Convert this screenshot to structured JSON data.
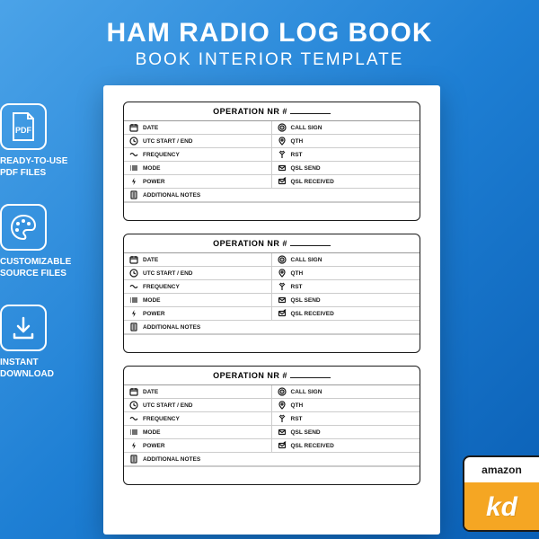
{
  "header": {
    "title": "HAM RADIO LOG BOOK",
    "subtitle": "BOOK INTERIOR TEMPLATE"
  },
  "features": [
    {
      "icon": "pdf",
      "line1": "READY-TO-USE",
      "line2": "PDF FILES"
    },
    {
      "icon": "palette",
      "line1": "CUSTOMIZABLE",
      "line2": "SOURCE FILES"
    },
    {
      "icon": "download",
      "line1": "INSTANT",
      "line2": "DOWNLOAD"
    }
  ],
  "log": {
    "header_prefix": "OPERATION NR #",
    "fields_left": [
      {
        "icon": "calendar",
        "label": "DATE"
      },
      {
        "icon": "clock",
        "label": "UTC START / END"
      },
      {
        "icon": "signal",
        "label": "FREQUENCY"
      },
      {
        "icon": "list",
        "label": "MODE"
      },
      {
        "icon": "power",
        "label": "POWER"
      }
    ],
    "fields_right": [
      {
        "icon": "target",
        "label": "CALL SIGN"
      },
      {
        "icon": "pin",
        "label": "QTH"
      },
      {
        "icon": "antenna",
        "label": "RST"
      },
      {
        "icon": "send",
        "label": "QSL SEND"
      },
      {
        "icon": "receive",
        "label": "QSL RECEIVED"
      }
    ],
    "notes_label": "ADDITIONAL NOTES",
    "notes_icon": "notes",
    "block_count": 3
  },
  "badge": {
    "top": "amazon",
    "bottom": "kd"
  },
  "colors": {
    "bg_start": "#4ba3e8",
    "bg_end": "#0a5fb5",
    "white": "#ffffff",
    "black": "#1a1a1a",
    "orange": "#f5a623"
  }
}
